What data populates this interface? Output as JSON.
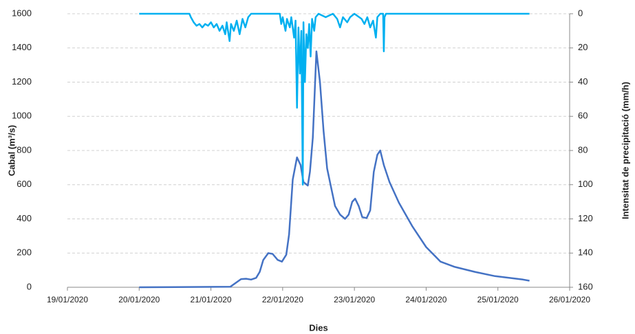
{
  "chart_data": {
    "type": "line",
    "x_label": "Dies",
    "y_label": "Cabal (m³/s)",
    "y2_label": "Intensitat de precipitació (mm/h)",
    "xlim": [
      0,
      7
    ],
    "xticks": [
      {
        "value": 0,
        "label": "19/01/2020"
      },
      {
        "value": 1,
        "label": "20/01/2020"
      },
      {
        "value": 2,
        "label": "21/01/2020"
      },
      {
        "value": 3,
        "label": "22/01/2020"
      },
      {
        "value": 4,
        "label": "23/01/2020"
      },
      {
        "value": 5,
        "label": "24/01/2020"
      },
      {
        "value": 6,
        "label": "25/01/2020"
      },
      {
        "value": 7,
        "label": "26/01/2020"
      }
    ],
    "ylim": [
      0,
      1600
    ],
    "yticks": [
      0,
      200,
      400,
      600,
      800,
      1000,
      1200,
      1400,
      1600
    ],
    "y2lim": [
      0,
      160
    ],
    "y2ticks": [
      0,
      20,
      40,
      60,
      80,
      100,
      120,
      140,
      160
    ],
    "y2_inverted": true,
    "grid": true,
    "series": [
      {
        "color": "#4472c4",
        "x": [
          1.0,
          2.27,
          2.42,
          2.49,
          2.56,
          2.63,
          2.68,
          2.73,
          2.8,
          2.86,
          2.93,
          2.99,
          3.05,
          3.09,
          3.14,
          3.2,
          3.25,
          3.29,
          3.35,
          3.38,
          3.42,
          3.47,
          3.52,
          3.57,
          3.62,
          3.67,
          3.73,
          3.8,
          3.87,
          3.92,
          3.97,
          4.01,
          4.06,
          4.11,
          4.17,
          4.22,
          4.27,
          4.32,
          4.36,
          4.41,
          4.49,
          4.62,
          4.81,
          5.0,
          5.2,
          5.39,
          5.68,
          5.96,
          6.35,
          6.44
        ],
        "values": [
          0,
          3,
          48,
          50,
          45,
          55,
          90,
          160,
          200,
          195,
          160,
          150,
          190,
          310,
          630,
          760,
          715,
          615,
          595,
          675,
          875,
          1380,
          1200,
          915,
          695,
          595,
          475,
          425,
          400,
          425,
          500,
          518,
          475,
          410,
          405,
          450,
          675,
          775,
          800,
          715,
          615,
          495,
          355,
          235,
          150,
          120,
          90,
          65,
          45,
          38
        ]
      },
      {
        "color": "#00b0f0",
        "axis": "y2",
        "x": [
          1.0,
          1.7,
          1.72,
          1.76,
          1.8,
          1.84,
          1.88,
          1.92,
          1.96,
          2.0,
          2.04,
          2.08,
          2.12,
          2.16,
          2.2,
          2.22,
          2.26,
          2.28,
          2.32,
          2.36,
          2.4,
          2.44,
          2.48,
          2.52,
          2.56,
          2.96,
          2.98,
          3.0,
          3.04,
          3.06,
          3.1,
          3.12,
          3.16,
          3.18,
          3.2,
          3.22,
          3.24,
          3.26,
          3.28,
          3.29,
          3.31,
          3.33,
          3.35,
          3.37,
          3.39,
          3.41,
          3.44,
          3.46,
          3.5,
          3.6,
          3.7,
          3.76,
          3.8,
          3.84,
          3.9,
          3.94,
          4.0,
          4.1,
          4.14,
          4.18,
          4.22,
          4.26,
          4.3,
          4.32,
          4.36,
          4.4,
          4.41,
          4.42,
          4.44,
          4.48,
          6.44
        ],
        "values": [
          0,
          0,
          2,
          5,
          7,
          6,
          8,
          6,
          7,
          5,
          8,
          6,
          10,
          7,
          12,
          5,
          16,
          6,
          10,
          4,
          12,
          3,
          8,
          2,
          0,
          0,
          6,
          2,
          10,
          3,
          8,
          2,
          14,
          4,
          55,
          8,
          35,
          10,
          100,
          5,
          40,
          12,
          20,
          6,
          25,
          3,
          10,
          2,
          0,
          2,
          0,
          3,
          8,
          2,
          5,
          2,
          0,
          3,
          6,
          2,
          8,
          4,
          14,
          2,
          0,
          0,
          22,
          2,
          0,
          0,
          0
        ]
      }
    ]
  }
}
